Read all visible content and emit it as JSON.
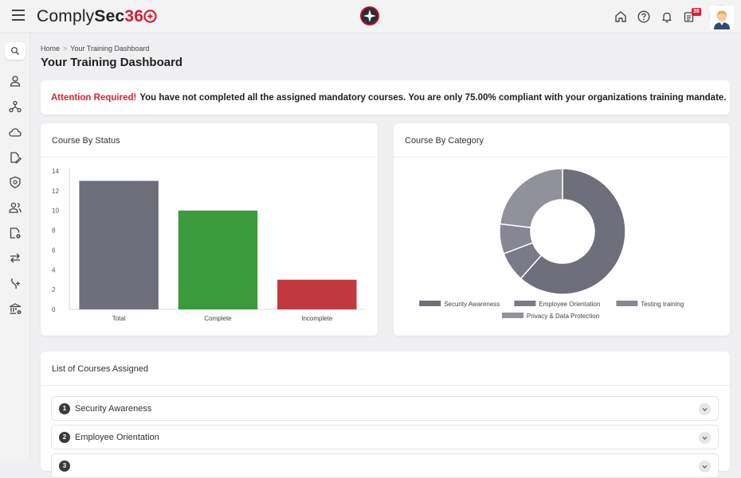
{
  "header": {
    "logo_part1": "Comply",
    "logo_part2": "Sec",
    "logo_part3": "36",
    "notification_count": "38",
    "icons": [
      "home-icon",
      "help-icon",
      "bell-icon",
      "notes-icon"
    ]
  },
  "sidebar": {
    "icons": [
      "search-icon",
      "user-icon",
      "network-icon",
      "cloud-icon",
      "file-edit-icon",
      "shield-icon",
      "users-icon",
      "file-settings-icon",
      "arrows-icon",
      "hand-plus-icon",
      "bank-settings-icon"
    ]
  },
  "breadcrumb": {
    "home": "Home",
    "separator": ">",
    "current": "Your Training Dashboard"
  },
  "page": {
    "title": "Your Training Dashboard"
  },
  "alert": {
    "label": "Attention Required!",
    "message": "You have not completed all the assigned mandatory courses. You are only 75.00% compliant with your organizations training mandate."
  },
  "status_card": {
    "title": "Course By Status"
  },
  "category_card": {
    "title": "Course By Category"
  },
  "courses_card": {
    "title": "List of Courses Assigned",
    "items": [
      {
        "num": "1",
        "label": "Security Awareness"
      },
      {
        "num": "2",
        "label": "Employee Orientation"
      },
      {
        "num": "3",
        "label": ""
      }
    ]
  },
  "colors": {
    "brand": "#d62034",
    "alert_red": "#e0212f",
    "bar_total": "#6e6f7b",
    "bar_complete": "#3b9a3b",
    "bar_incomplete": "#c1393f"
  },
  "chart_data": [
    {
      "type": "bar",
      "categories": [
        "Total",
        "Complete",
        "Incomplete"
      ],
      "values": [
        13,
        10,
        3
      ],
      "ylim": [
        0,
        14
      ],
      "yticks": [
        0,
        2,
        4,
        6,
        8,
        10,
        12,
        14
      ],
      "colors": [
        "#6e6f7b",
        "#3b9a3b",
        "#c1393f"
      ],
      "grid": false
    },
    {
      "type": "pie",
      "donut": true,
      "labels": [
        "Security Awareness",
        "Employee Orientation",
        "Testing training",
        "Privacy & Data Protection"
      ],
      "values": [
        8,
        1,
        1,
        3
      ],
      "colors": [
        "#6e6f7b",
        "#7a7b86",
        "#868792",
        "#90919b"
      ],
      "legend_position": "bottom"
    }
  ]
}
